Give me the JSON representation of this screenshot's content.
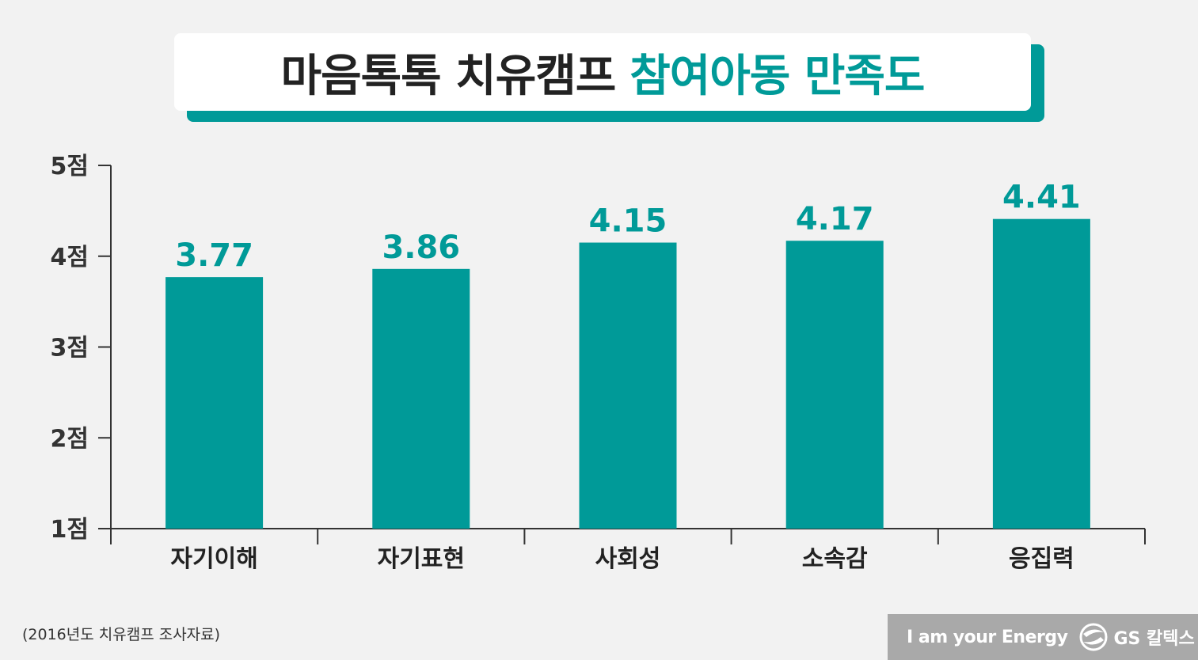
{
  "title": {
    "main": "마음톡톡 치유캠프",
    "accent": "참여아동 만족도"
  },
  "source": "(2016년도 치유캠프 조사자료)",
  "brand": {
    "tagline": "I am your Energy",
    "company": "GS 칼텍스"
  },
  "colors": {
    "accent": "#009a98",
    "background": "#f2f2f2",
    "title_text": "#222222"
  },
  "chart_data": {
    "type": "bar",
    "categories": [
      "자기이해",
      "자기표현",
      "사회성",
      "소속감",
      "응집력"
    ],
    "values": [
      3.77,
      3.86,
      4.15,
      4.17,
      4.41
    ],
    "data_labels": [
      "3.77",
      "3.86",
      "4.15",
      "4.17",
      "4.41"
    ],
    "ylim": [
      1,
      5
    ],
    "yticks": [
      1,
      2,
      3,
      4,
      5
    ],
    "ytick_labels": [
      "1점",
      "2점",
      "3점",
      "4점",
      "5점"
    ],
    "grid": false,
    "legend": "none"
  }
}
